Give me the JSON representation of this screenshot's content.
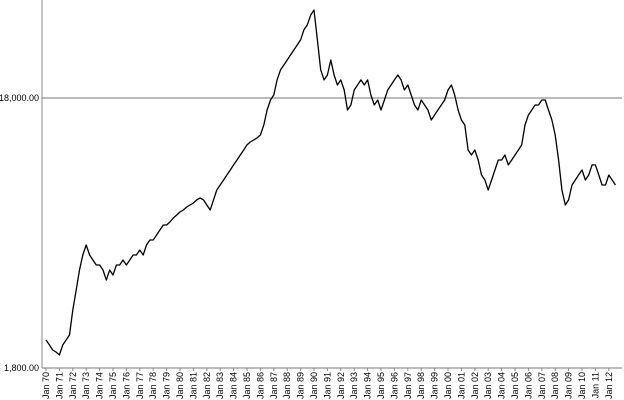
{
  "chart_data": {
    "type": "line",
    "categories": [
      "Jan 70",
      null,
      null,
      null,
      "Jan 71",
      null,
      null,
      null,
      "Jan 72",
      null,
      null,
      null,
      "Jan 73",
      null,
      null,
      null,
      "Jan 74",
      null,
      null,
      null,
      "Jan 75",
      null,
      null,
      null,
      "Jan 76",
      null,
      null,
      null,
      "Jan 77",
      null,
      null,
      null,
      "Jan 78",
      null,
      null,
      null,
      "Jan 79",
      null,
      null,
      null,
      "Jan 80",
      null,
      null,
      null,
      "Jan 81",
      null,
      null,
      null,
      "Jan 82",
      null,
      null,
      null,
      "Jan 83",
      null,
      null,
      null,
      "Jan 84",
      null,
      null,
      null,
      "Jan 85",
      null,
      null,
      null,
      "Jan 86",
      null,
      null,
      null,
      "Jan 87",
      null,
      null,
      null,
      "Jan 88",
      null,
      null,
      null,
      "Jan 89",
      null,
      null,
      null,
      "Jan 90",
      null,
      null,
      null,
      "Jan 91",
      null,
      null,
      null,
      "Jan 92",
      null,
      null,
      null,
      "Jan 93",
      null,
      null,
      null,
      "Jan 94",
      null,
      null,
      null,
      "Jan 95",
      null,
      null,
      null,
      "Jan 96",
      null,
      null,
      null,
      "Jan 97",
      null,
      null,
      null,
      "Jan 98",
      null,
      null,
      null,
      "Jan 99",
      null,
      null,
      null,
      "Jan 00",
      null,
      null,
      null,
      "Jan 01",
      null,
      null,
      null,
      "Jan 02",
      null,
      null,
      null,
      "Jan 03",
      null,
      null,
      null,
      "Jan 04",
      null,
      null,
      null,
      "Jan 05",
      null,
      null,
      null,
      "Jan 06",
      null,
      null,
      null,
      "Jan 07",
      null,
      null,
      null,
      "Jan 08",
      null,
      null,
      null,
      "Jan 09",
      null,
      null,
      null,
      "Jan 10",
      null,
      null,
      null,
      "Jan 11",
      null,
      null,
      null,
      "Jan 12",
      null,
      null
    ],
    "values": [
      2286,
      2191,
      2099,
      2063,
      2011,
      2191,
      2286,
      2385,
      2952,
      3501,
      4153,
      4719,
      5139,
      4719,
      4522,
      4333,
      4333,
      4153,
      3812,
      4153,
      3978,
      4333,
      4333,
      4522,
      4333,
      4522,
      4719,
      4719,
      4924,
      4719,
      5139,
      5362,
      5362,
      5596,
      5839,
      6094,
      6094,
      6252,
      6469,
      6636,
      6807,
      6926,
      7105,
      7227,
      7351,
      7546,
      7675,
      7546,
      7227,
      6926,
      7546,
      8213,
      8572,
      8946,
      9336,
      9742,
      10168,
      10610,
      11072,
      11554,
      12058,
      12368,
      12582,
      12800,
      13131,
      14297,
      16250,
      17696,
      18468,
      20990,
      22860,
      23850,
      24890,
      25980,
      27110,
      28290,
      29520,
      32150,
      33550,
      36530,
      38120,
      29520,
      22860,
      20990,
      21900,
      24890,
      21900,
      20110,
      20990,
      19270,
      16250,
      16958,
      19270,
      20110,
      20990,
      20110,
      20990,
      18468,
      16958,
      17696,
      16250,
      17696,
      19270,
      20110,
      20990,
      21900,
      20990,
      19270,
      20110,
      18468,
      16958,
      16250,
      17696,
      16958,
      16250,
      14920,
      15570,
      16250,
      16958,
      17696,
      19270,
      20110,
      18468,
      16250,
      14920,
      14297,
      11554,
      11072,
      11554,
      10610,
      9336,
      8946,
      8213,
      8946,
      9742,
      10610,
      10610,
      11072,
      10168,
      10610,
      11072,
      11554,
      12058,
      14297,
      15570,
      16250,
      16958,
      16958,
      17696,
      17696,
      16250,
      14920,
      13131,
      10610,
      8213,
      7227,
      7546,
      8572,
      8946,
      9336,
      9742,
      8946,
      9336,
      10168,
      10168,
      9336,
      8572,
      8572,
      9336,
      8946,
      8572
    ],
    "color": "#000000",
    "log_scale": true,
    "grid": true,
    "ylim": [
      1800,
      41500
    ],
    "yticks": [
      {
        "value": 1800,
        "label": "1,800.00"
      },
      {
        "value": 18000,
        "label": "18,000.00"
      }
    ]
  }
}
